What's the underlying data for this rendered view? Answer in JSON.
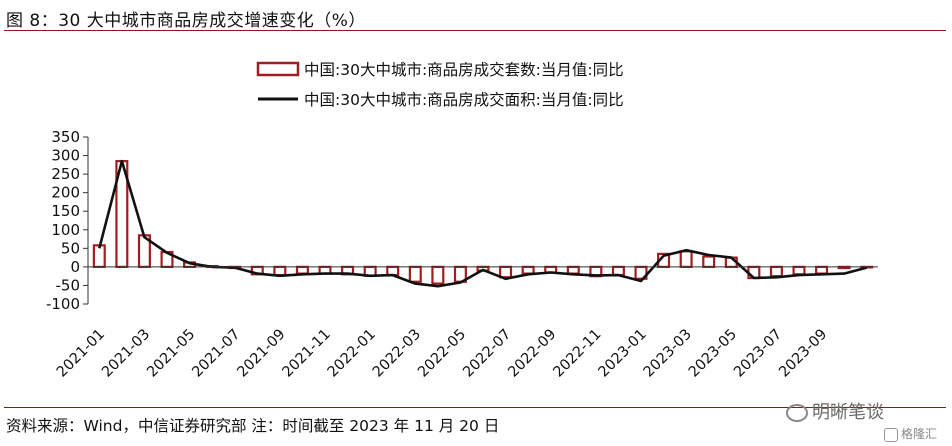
{
  "header": {
    "title": "图 8：30 大中城市商品房成交增速变化（%）"
  },
  "footer": {
    "source": "资料来源：Wind，中信证券研究部  注：时间截至 2023 年 11 月 20 日",
    "watermark": "明晰笔谈",
    "watermark_small": "格隆汇"
  },
  "colors": {
    "bar_stroke": "#a11d21",
    "bar_fill": "#ffffff",
    "line": "#111111",
    "rule": "#8b1a1a"
  },
  "chart_data": {
    "type": "bar",
    "title": "",
    "xlabel": "",
    "ylabel": "",
    "ylim": [
      -100,
      350
    ],
    "yticks": [
      -100,
      -50,
      0,
      50,
      100,
      150,
      200,
      250,
      300,
      350
    ],
    "grid": false,
    "legend_position": "top-center",
    "x": [
      "2021-01",
      "2021-02",
      "2021-03",
      "2021-04",
      "2021-05",
      "2021-06",
      "2021-07",
      "2021-08",
      "2021-09",
      "2021-10",
      "2021-11",
      "2021-12",
      "2022-01",
      "2022-02",
      "2022-03",
      "2022-04",
      "2022-05",
      "2022-06",
      "2022-07",
      "2022-08",
      "2022-09",
      "2022-10",
      "2022-11",
      "2022-12",
      "2023-01",
      "2023-02",
      "2023-03",
      "2023-04",
      "2023-05",
      "2023-06",
      "2023-07",
      "2023-08",
      "2023-09",
      "2023-10",
      "2023-11"
    ],
    "xtick_labels": [
      "2021-01",
      "2021-03",
      "2021-05",
      "2021-07",
      "2021-09",
      "2021-11",
      "2022-01",
      "2022-03",
      "2022-05",
      "2022-07",
      "2022-09",
      "2022-11",
      "2023-01",
      "2023-03",
      "2023-05",
      "2023-07",
      "2023-09"
    ],
    "series": [
      {
        "name": "中国:30大中城市:商品房成交套数:当月值:同比",
        "type": "bar",
        "values": [
          58,
          285,
          85,
          40,
          12,
          2,
          -3,
          -20,
          -22,
          -18,
          -18,
          -20,
          -24,
          -22,
          -40,
          -45,
          -40,
          -10,
          -28,
          -18,
          -15,
          -18,
          -25,
          -22,
          -32,
          35,
          42,
          28,
          25,
          -30,
          -25,
          -20,
          -18,
          -3,
          0
        ]
      },
      {
        "name": "中国:30大中城市:商品房成交面积:当月值:同比",
        "type": "line",
        "values": [
          50,
          285,
          80,
          38,
          10,
          0,
          -2,
          -18,
          -24,
          -20,
          -18,
          -18,
          -24,
          -22,
          -45,
          -52,
          -42,
          -8,
          -32,
          -20,
          -15,
          -20,
          -23,
          -22,
          -38,
          30,
          45,
          32,
          25,
          -30,
          -28,
          -22,
          -20,
          -18,
          -2
        ]
      }
    ]
  }
}
